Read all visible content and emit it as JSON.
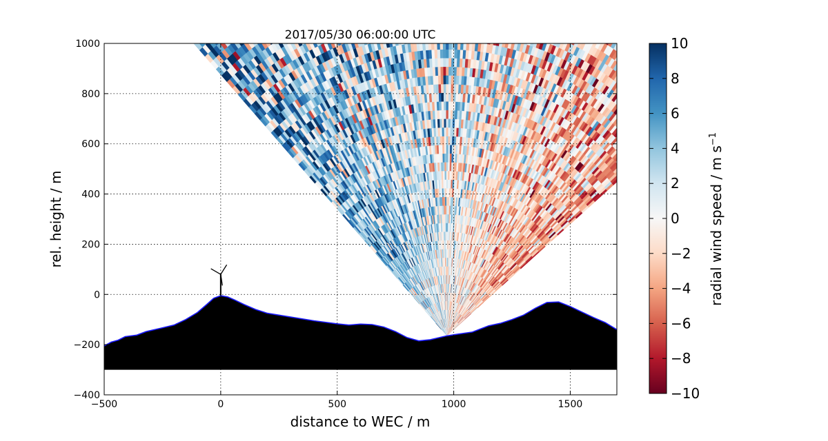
{
  "chart_data": {
    "type": "heatmap",
    "title": "2017/05/30 06:00:00 UTC",
    "xlabel": "distance to WEC / m",
    "ylabel": "rel. height / m",
    "xlim": [
      -500,
      1700
    ],
    "ylim": [
      -400,
      1000
    ],
    "x_ticks": [
      -500,
      0,
      500,
      1000,
      1500
    ],
    "y_ticks": [
      -400,
      -200,
      0,
      200,
      400,
      600,
      800,
      1000
    ],
    "grid": true,
    "scan": {
      "origin": [
        970,
        -165
      ],
      "min_angle_deg": 40,
      "max_angle_deg": 133,
      "max_range_m": 1660
    },
    "colorbar": {
      "label": "radial wind speed / m s",
      "label_superscript": "−1",
      "range": [
        -10,
        10
      ],
      "ticks": [
        10,
        8,
        6,
        4,
        2,
        0,
        -2,
        -4,
        -6,
        -8,
        -10
      ],
      "tick_labels": [
        "10",
        "8",
        "6",
        "4",
        "2",
        "0",
        "−2",
        "−4",
        "−6",
        "−8",
        "−10"
      ],
      "colormap": "RdBu",
      "stops": [
        "#67001f",
        "#b2182b",
        "#d6604d",
        "#f4a582",
        "#fddbc7",
        "#f7f7f7",
        "#d1e5f0",
        "#92c5de",
        "#4393c3",
        "#2166ac",
        "#053061"
      ]
    },
    "terrain": {
      "fill_color": "#000000",
      "outline_color": "#1a1aff",
      "base": -300,
      "profile": [
        [
          -500,
          -205
        ],
        [
          -470,
          -190
        ],
        [
          -440,
          -182
        ],
        [
          -410,
          -168
        ],
        [
          -360,
          -162
        ],
        [
          -320,
          -148
        ],
        [
          -260,
          -135
        ],
        [
          -200,
          -122
        ],
        [
          -150,
          -100
        ],
        [
          -100,
          -72
        ],
        [
          -60,
          -40
        ],
        [
          -30,
          -15
        ],
        [
          0,
          -5
        ],
        [
          30,
          -10
        ],
        [
          60,
          -22
        ],
        [
          100,
          -40
        ],
        [
          150,
          -60
        ],
        [
          200,
          -75
        ],
        [
          300,
          -90
        ],
        [
          400,
          -105
        ],
        [
          500,
          -117
        ],
        [
          550,
          -122
        ],
        [
          600,
          -118
        ],
        [
          650,
          -120
        ],
        [
          700,
          -130
        ],
        [
          750,
          -148
        ],
        [
          800,
          -172
        ],
        [
          850,
          -185
        ],
        [
          900,
          -180
        ],
        [
          970,
          -165
        ],
        [
          1020,
          -158
        ],
        [
          1080,
          -150
        ],
        [
          1150,
          -125
        ],
        [
          1200,
          -115
        ],
        [
          1250,
          -100
        ],
        [
          1300,
          -82
        ],
        [
          1350,
          -55
        ],
        [
          1400,
          -32
        ],
        [
          1450,
          -30
        ],
        [
          1500,
          -48
        ],
        [
          1550,
          -70
        ],
        [
          1600,
          -92
        ],
        [
          1650,
          -112
        ],
        [
          1700,
          -140
        ]
      ]
    },
    "turbine": {
      "x": 0,
      "hub_height": 80,
      "rotor_radius": 45
    }
  }
}
